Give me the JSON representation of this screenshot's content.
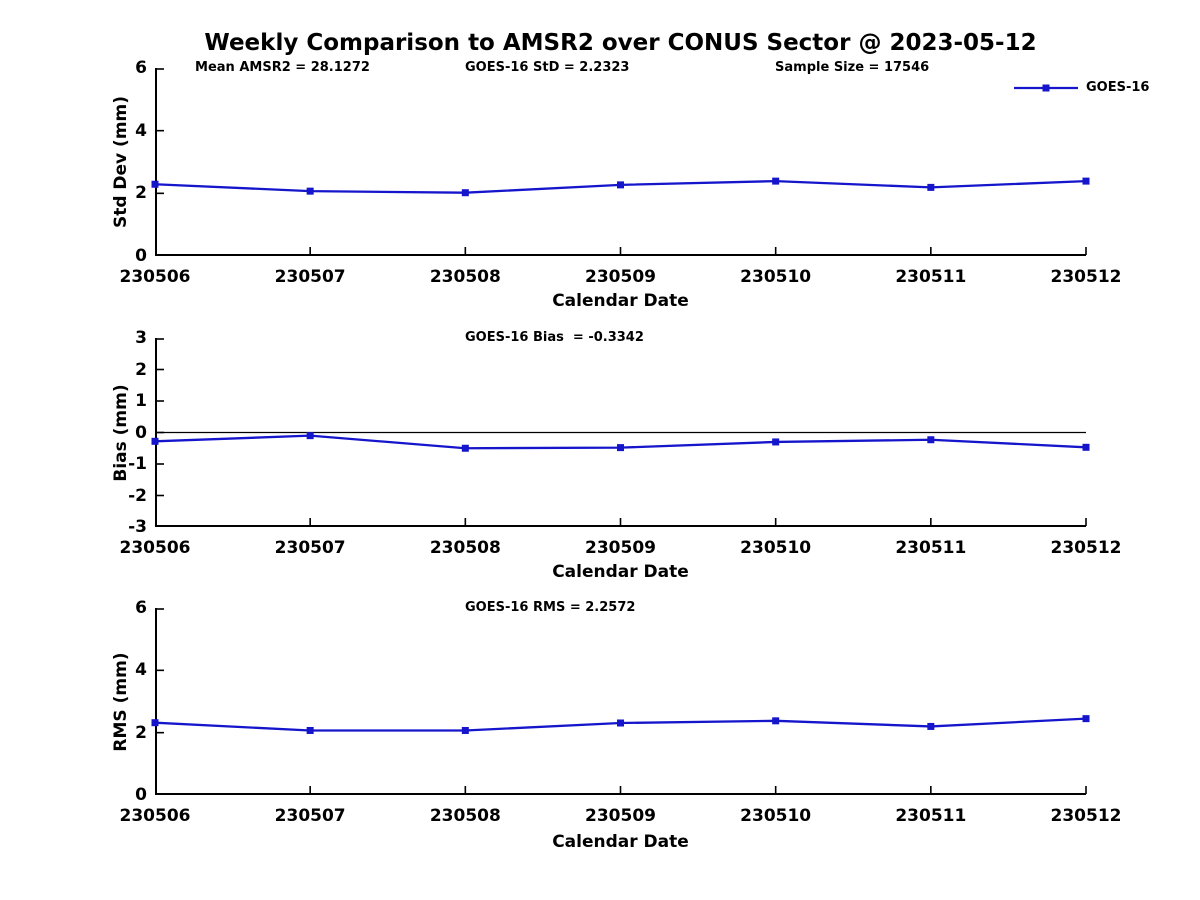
{
  "title": "Weekly Comparison to AMSR2 over CONUS Sector @ 2023-05-12",
  "legend": {
    "label": "GOES-16",
    "position": "top-right"
  },
  "colors": {
    "series": "#1515cc",
    "axis": "#000000",
    "text": "#000000"
  },
  "chart_data": [
    {
      "type": "line",
      "panel": "std-dev",
      "title": "",
      "categories": [
        "230506",
        "230507",
        "230508",
        "230509",
        "230510",
        "230511",
        "230512"
      ],
      "series": [
        {
          "name": "GOES-16",
          "values": [
            2.29,
            2.07,
            2.02,
            2.27,
            2.39,
            2.19,
            2.39
          ]
        }
      ],
      "xlabel": "Calendar Date",
      "ylabel": "Std Dev (mm)",
      "ylim": [
        0,
        6
      ],
      "yticks": [
        0,
        2,
        4,
        6
      ],
      "grid": false,
      "zero_line": false,
      "legend": {
        "visible": true,
        "label": "GOES-16",
        "position": "top-right"
      },
      "annotations": [
        "Mean AMSR2 = 28.1272",
        "GOES-16 StD = 2.2323",
        "Sample Size = 17546"
      ]
    },
    {
      "type": "line",
      "panel": "bias",
      "title": "",
      "categories": [
        "230506",
        "230507",
        "230508",
        "230509",
        "230510",
        "230511",
        "230512"
      ],
      "series": [
        {
          "name": "GOES-16",
          "values": [
            -0.28,
            -0.1,
            -0.5,
            -0.48,
            -0.3,
            -0.23,
            -0.47
          ]
        }
      ],
      "xlabel": "Calendar Date",
      "ylabel": "Bias (mm)",
      "ylim": [
        -3,
        3
      ],
      "yticks": [
        3,
        2,
        1,
        0,
        -1,
        -2,
        -3
      ],
      "grid": false,
      "zero_line": true,
      "legend": {
        "visible": false
      },
      "annotations": [
        "GOES-16 Bias  = -0.3342"
      ]
    },
    {
      "type": "line",
      "panel": "rms",
      "title": "",
      "categories": [
        "230506",
        "230507",
        "230508",
        "230509",
        "230510",
        "230511",
        "230512"
      ],
      "series": [
        {
          "name": "GOES-16",
          "values": [
            2.32,
            2.07,
            2.07,
            2.31,
            2.38,
            2.2,
            2.45
          ]
        }
      ],
      "xlabel": "Calendar Date",
      "ylabel": "RMS (mm)",
      "ylim": [
        0,
        6
      ],
      "yticks": [
        0,
        2,
        4,
        6
      ],
      "grid": false,
      "zero_line": false,
      "legend": {
        "visible": false
      },
      "annotations": [
        "GOES-16 RMS = 2.2572"
      ]
    }
  ]
}
